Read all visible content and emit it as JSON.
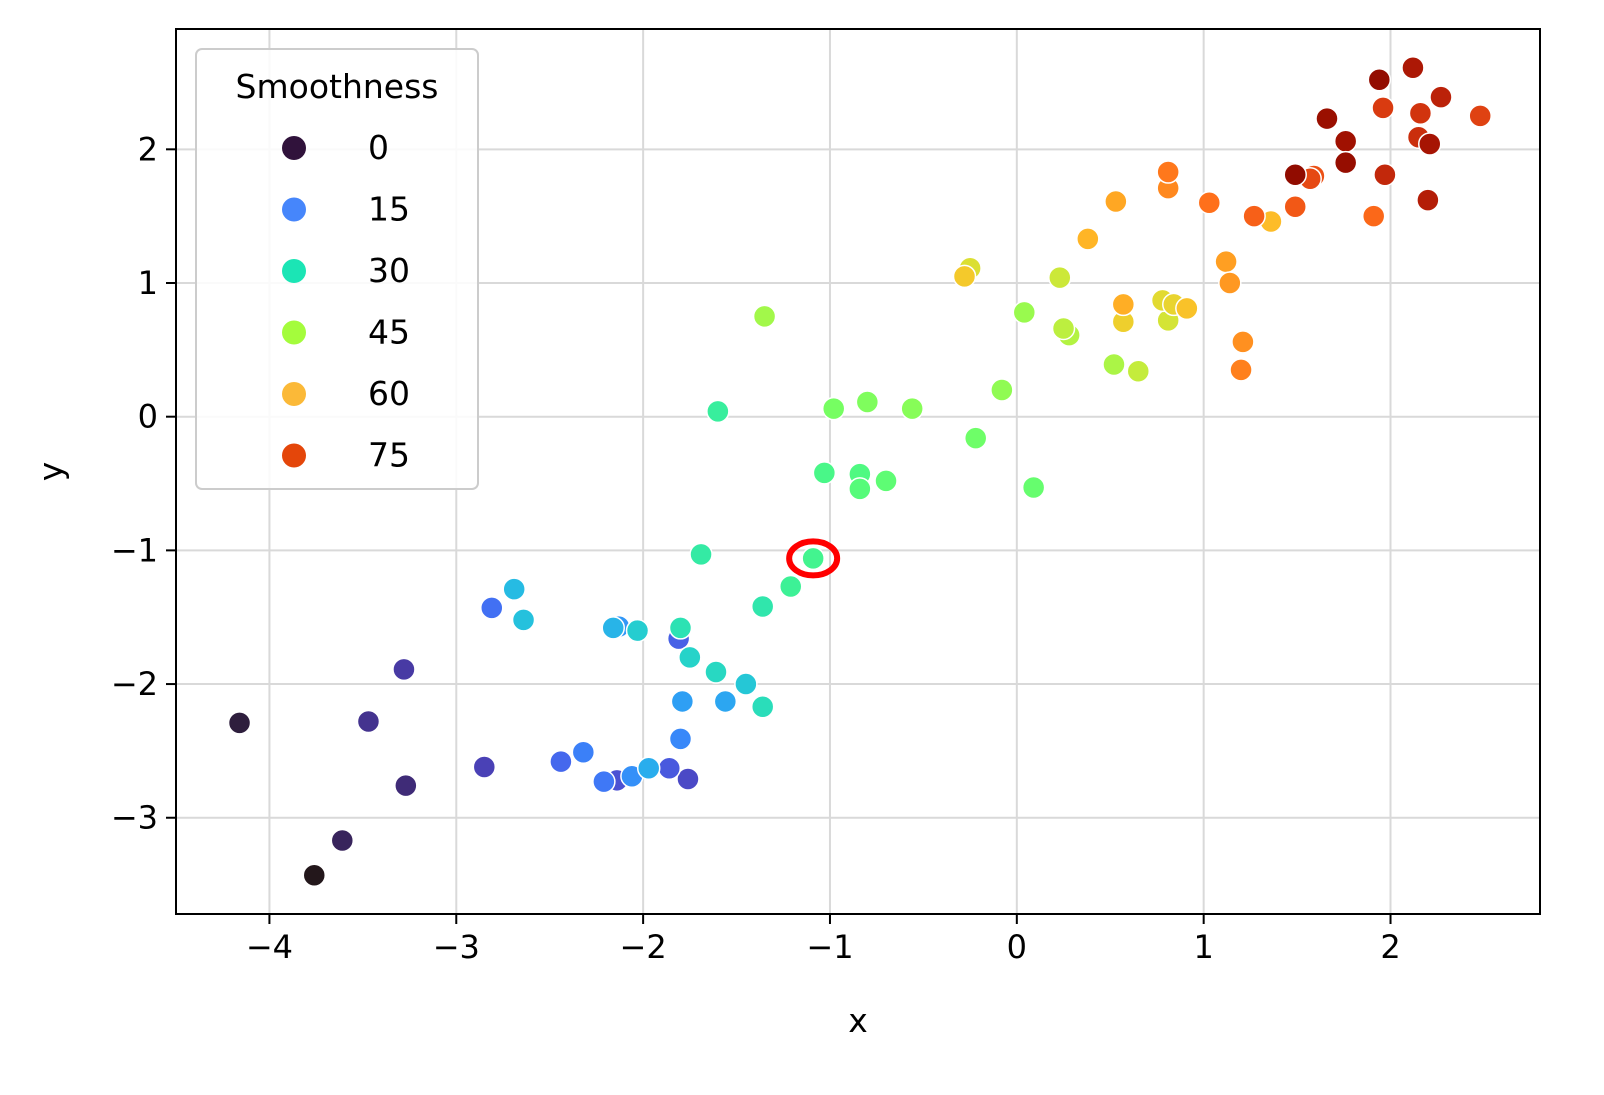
{
  "chart_data": {
    "type": "scatter",
    "title": "",
    "xlabel": "x",
    "ylabel": "y",
    "xlim": [
      -4.5,
      2.8
    ],
    "ylim": [
      -3.72,
      2.9
    ],
    "xticks": [
      -4,
      -3,
      -2,
      -1,
      0,
      1,
      2
    ],
    "xtick_labels": [
      "−4",
      "−3",
      "−2",
      "−1",
      "0",
      "1",
      "2"
    ],
    "yticks": [
      -3,
      -2,
      -1,
      0,
      1,
      2
    ],
    "ytick_labels": [
      "−3",
      "−2",
      "−1",
      "0",
      "1",
      "2"
    ],
    "grid": true,
    "colormap": "turbo",
    "hue_range": [
      0,
      89
    ],
    "legend": {
      "title": "Smoothness",
      "placement": "upper-left",
      "entries": [
        {
          "label": "0",
          "color": "#30123b"
        },
        {
          "label": "15",
          "color": "#4686fb"
        },
        {
          "label": "30",
          "color": "#1be5b5"
        },
        {
          "label": "45",
          "color": "#a4fc3c"
        },
        {
          "label": "60",
          "color": "#fbb938"
        },
        {
          "label": "75",
          "color": "#e4460a"
        }
      ]
    },
    "highlight": {
      "x": -1.09,
      "y": -1.06,
      "color": "#ff0000"
    },
    "points": [
      {
        "x": -3.76,
        "y": -3.43,
        "hue": 0
      },
      {
        "x": -4.16,
        "y": -2.29,
        "hue": 1
      },
      {
        "x": -3.61,
        "y": -3.17,
        "hue": 2
      },
      {
        "x": -3.27,
        "y": -2.76,
        "hue": 3
      },
      {
        "x": -3.47,
        "y": -2.28,
        "hue": 4
      },
      {
        "x": -3.28,
        "y": -1.89,
        "hue": 5
      },
      {
        "x": -2.85,
        "y": -2.62,
        "hue": 6
      },
      {
        "x": -1.76,
        "y": -2.71,
        "hue": 7
      },
      {
        "x": -2.14,
        "y": -2.72,
        "hue": 8
      },
      {
        "x": -1.86,
        "y": -2.63,
        "hue": 9
      },
      {
        "x": -1.81,
        "y": -1.66,
        "hue": 10
      },
      {
        "x": -2.44,
        "y": -2.58,
        "hue": 11
      },
      {
        "x": -2.81,
        "y": -1.43,
        "hue": 12
      },
      {
        "x": -2.21,
        "y": -2.73,
        "hue": 13
      },
      {
        "x": -2.32,
        "y": -2.51,
        "hue": 14
      },
      {
        "x": -1.8,
        "y": -2.41,
        "hue": 15
      },
      {
        "x": -2.06,
        "y": -2.69,
        "hue": 16
      },
      {
        "x": -2.13,
        "y": -1.57,
        "hue": 17
      },
      {
        "x": -1.79,
        "y": -2.13,
        "hue": 18
      },
      {
        "x": -1.56,
        "y": -2.13,
        "hue": 19
      },
      {
        "x": -1.97,
        "y": -2.63,
        "hue": 20
      },
      {
        "x": -2.16,
        "y": -1.58,
        "hue": 21
      },
      {
        "x": -2.69,
        "y": -1.29,
        "hue": 22
      },
      {
        "x": -2.64,
        "y": -1.52,
        "hue": 23
      },
      {
        "x": -1.45,
        "y": -2.0,
        "hue": 24
      },
      {
        "x": -2.03,
        "y": -1.6,
        "hue": 25
      },
      {
        "x": -1.75,
        "y": -1.8,
        "hue": 26
      },
      {
        "x": -1.61,
        "y": -1.91,
        "hue": 27
      },
      {
        "x": -1.36,
        "y": -2.17,
        "hue": 28
      },
      {
        "x": -1.8,
        "y": -1.58,
        "hue": 29
      },
      {
        "x": -1.36,
        "y": -1.42,
        "hue": 30
      },
      {
        "x": -1.69,
        "y": -1.03,
        "hue": 31
      },
      {
        "x": -1.6,
        "y": 0.04,
        "hue": 32
      },
      {
        "x": -1.21,
        "y": -1.27,
        "hue": 33
      },
      {
        "x": -1.09,
        "y": -1.06,
        "hue": 34
      },
      {
        "x": -1.03,
        "y": -0.42,
        "hue": 35
      },
      {
        "x": -0.84,
        "y": -0.43,
        "hue": 36
      },
      {
        "x": -0.84,
        "y": -0.54,
        "hue": 37
      },
      {
        "x": -0.7,
        "y": -0.48,
        "hue": 38
      },
      {
        "x": 0.09,
        "y": -0.53,
        "hue": 39
      },
      {
        "x": -0.22,
        "y": -0.16,
        "hue": 40
      },
      {
        "x": -0.98,
        "y": 0.06,
        "hue": 41
      },
      {
        "x": -0.8,
        "y": 0.11,
        "hue": 42
      },
      {
        "x": -0.56,
        "y": 0.06,
        "hue": 43
      },
      {
        "x": -0.08,
        "y": 0.2,
        "hue": 44
      },
      {
        "x": 0.04,
        "y": 0.78,
        "hue": 45
      },
      {
        "x": -1.35,
        "y": 0.75,
        "hue": 46
      },
      {
        "x": 0.52,
        "y": 0.39,
        "hue": 47
      },
      {
        "x": 0.28,
        "y": 0.61,
        "hue": 48
      },
      {
        "x": 0.25,
        "y": 0.66,
        "hue": 49
      },
      {
        "x": 0.65,
        "y": 0.34,
        "hue": 50
      },
      {
        "x": 0.23,
        "y": 1.04,
        "hue": 51
      },
      {
        "x": 0.81,
        "y": 0.72,
        "hue": 52
      },
      {
        "x": -0.25,
        "y": 1.11,
        "hue": 53
      },
      {
        "x": 0.78,
        "y": 0.87,
        "hue": 54
      },
      {
        "x": 0.84,
        "y": 0.84,
        "hue": 55
      },
      {
        "x": 0.57,
        "y": 0.71,
        "hue": 56
      },
      {
        "x": -0.28,
        "y": 1.05,
        "hue": 57
      },
      {
        "x": 0.91,
        "y": 0.81,
        "hue": 58
      },
      {
        "x": 1.36,
        "y": 1.46,
        "hue": 59
      },
      {
        "x": 0.38,
        "y": 1.33,
        "hue": 60
      },
      {
        "x": 0.57,
        "y": 0.84,
        "hue": 61
      },
      {
        "x": 0.53,
        "y": 1.61,
        "hue": 62
      },
      {
        "x": 1.12,
        "y": 1.16,
        "hue": 63
      },
      {
        "x": 1.14,
        "y": 1.0,
        "hue": 64
      },
      {
        "x": 1.21,
        "y": 0.56,
        "hue": 65
      },
      {
        "x": 0.81,
        "y": 1.71,
        "hue": 66
      },
      {
        "x": 1.2,
        "y": 0.35,
        "hue": 67
      },
      {
        "x": 0.81,
        "y": 1.83,
        "hue": 68
      },
      {
        "x": 1.03,
        "y": 1.6,
        "hue": 69
      },
      {
        "x": 1.91,
        "y": 1.5,
        "hue": 70
      },
      {
        "x": 1.27,
        "y": 1.5,
        "hue": 71
      },
      {
        "x": 1.49,
        "y": 1.57,
        "hue": 72
      },
      {
        "x": 1.59,
        "y": 1.8,
        "hue": 73
      },
      {
        "x": 1.57,
        "y": 1.78,
        "hue": 74
      },
      {
        "x": 2.48,
        "y": 2.25,
        "hue": 75
      },
      {
        "x": 1.96,
        "y": 2.31,
        "hue": 76
      },
      {
        "x": 2.16,
        "y": 2.27,
        "hue": 77
      },
      {
        "x": 2.15,
        "y": 2.09,
        "hue": 78
      },
      {
        "x": 1.97,
        "y": 1.81,
        "hue": 79
      },
      {
        "x": 2.27,
        "y": 2.39,
        "hue": 80
      },
      {
        "x": 2.2,
        "y": 1.62,
        "hue": 81
      },
      {
        "x": 2.12,
        "y": 2.61,
        "hue": 82
      },
      {
        "x": 2.21,
        "y": 2.04,
        "hue": 83
      },
      {
        "x": 1.76,
        "y": 2.06,
        "hue": 84
      },
      {
        "x": 1.66,
        "y": 2.23,
        "hue": 85
      },
      {
        "x": 1.76,
        "y": 1.9,
        "hue": 86
      },
      {
        "x": 1.94,
        "y": 2.52,
        "hue": 87
      },
      {
        "x": 1.49,
        "y": 1.81,
        "hue": 88
      }
    ]
  }
}
